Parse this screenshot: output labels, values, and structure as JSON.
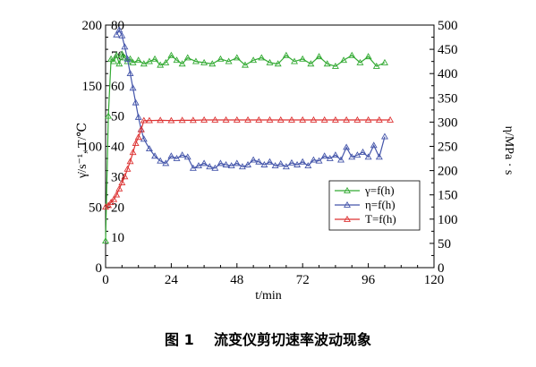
{
  "caption": "图 1    流变仪剪切速率波动现象",
  "chart_data": {
    "type": "line",
    "xlabel": "t/min",
    "ylabel_left": "γ̇/s⁻¹, T/℃",
    "ylabel_right": "η/MPa · s",
    "x_ticks": [
      "0",
      "24",
      "48",
      "72",
      "96",
      "120"
    ],
    "xlim": [
      0,
      120
    ],
    "y_left_ticks": [
      "0",
      "50",
      "100",
      "150",
      "200"
    ],
    "ylim_left": [
      0,
      200
    ],
    "y_inner_ticks": [
      "10",
      "20",
      "30",
      "40",
      "50",
      "60",
      "70",
      "80"
    ],
    "y_right_ticks": [
      "0",
      "50",
      "100",
      "150",
      "200",
      "250",
      "300",
      "350",
      "400",
      "450",
      "500"
    ],
    "ylim_right": [
      0,
      500
    ],
    "legend_position": "right-middle",
    "grid": false,
    "series": [
      {
        "name": "γ=f(h)",
        "color": "#33aa33",
        "x": [
          0,
          1,
          2,
          3,
          4,
          5,
          6,
          7,
          8,
          9,
          10,
          12,
          14,
          16,
          18,
          20,
          22,
          24,
          26,
          28,
          30,
          33,
          36,
          39,
          42,
          45,
          48,
          51,
          54,
          57,
          60,
          63,
          66,
          69,
          72,
          75,
          78,
          81,
          84,
          87,
          90,
          93,
          96,
          99,
          102
        ],
        "values": [
          22,
          125,
          172,
          170,
          175,
          168,
          176,
          173,
          170,
          172,
          169,
          171,
          168,
          170,
          172,
          167,
          169,
          175,
          171,
          168,
          173,
          170,
          169,
          168,
          172,
          170,
          173,
          167,
          171,
          173,
          169,
          168,
          175,
          170,
          172,
          168,
          174,
          168,
          166,
          171,
          175,
          169,
          174,
          166,
          169
        ]
      },
      {
        "name": "η=f(h)",
        "color": "#4455aa",
        "x": [
          4,
          5,
          6,
          7,
          8,
          9,
          10,
          11,
          12,
          13,
          14,
          16,
          18,
          20,
          22,
          24,
          26,
          28,
          30,
          32,
          34,
          36,
          38,
          40,
          42,
          44,
          46,
          48,
          50,
          52,
          54,
          56,
          58,
          60,
          62,
          64,
          66,
          68,
          70,
          72,
          74,
          76,
          78,
          80,
          82,
          84,
          86,
          88,
          90,
          92,
          94,
          96,
          98,
          100,
          102
        ],
        "values": [
          480,
          490,
          478,
          455,
          430,
          400,
          370,
          340,
          310,
          285,
          265,
          245,
          230,
          220,
          215,
          230,
          225,
          232,
          228,
          205,
          210,
          215,
          208,
          205,
          215,
          212,
          210,
          215,
          208,
          212,
          222,
          218,
          212,
          218,
          210,
          214,
          208,
          216,
          212,
          218,
          210,
          222,
          220,
          230,
          225,
          232,
          222,
          248,
          228,
          232,
          238,
          228,
          252,
          228,
          270
        ]
      },
      {
        "name": "T=f(h)",
        "color": "#dd3333",
        "x": [
          0,
          1,
          2,
          3,
          4,
          5,
          6,
          7,
          8,
          9,
          10,
          11,
          12,
          13,
          14,
          16,
          20,
          24,
          28,
          32,
          36,
          40,
          44,
          48,
          52,
          56,
          60,
          64,
          68,
          72,
          76,
          80,
          84,
          88,
          92,
          96,
          100,
          104
        ],
        "values": [
          20,
          20.5,
          21.5,
          22.5,
          24,
          26,
          28,
          30,
          32.5,
          35,
          38,
          41,
          43,
          45.5,
          48.5,
          48.5,
          48.6,
          48.5,
          48.6,
          48.6,
          48.7,
          48.7,
          48.7,
          48.7,
          48.7,
          48.7,
          48.7,
          48.7,
          48.7,
          48.7,
          48.7,
          48.7,
          48.7,
          48.7,
          48.7,
          48.7,
          48.7,
          48.7
        ]
      }
    ]
  }
}
